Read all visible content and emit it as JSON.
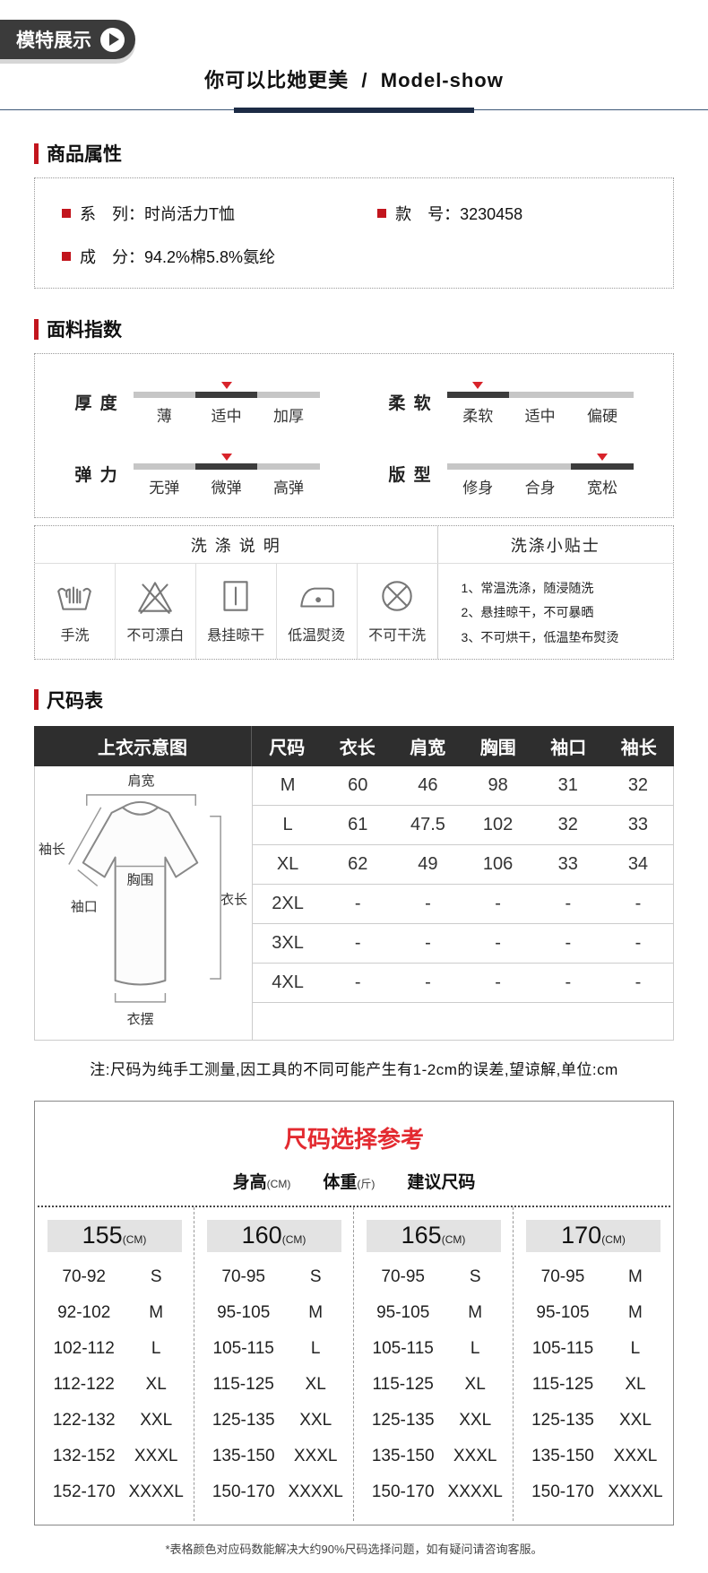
{
  "badge": {
    "label": "模特展示",
    "icon": "play-icon"
  },
  "header": {
    "title_cn": "你可以比她更美",
    "separator": "/",
    "title_en": "Model-show"
  },
  "product_attrs": {
    "section_title": "商品属性",
    "items": [
      {
        "label": "系　列：",
        "value": "时尚活力T恤"
      },
      {
        "label": "款　号：",
        "value": "3230458"
      },
      {
        "label": "成　分：",
        "value": "94.2%棉5.8%氨纶"
      }
    ]
  },
  "fabric_index": {
    "section_title": "面料指数",
    "indexes": [
      {
        "name": "厚 度",
        "levels": [
          "薄",
          "适中",
          "加厚"
        ],
        "active": 1
      },
      {
        "name": "柔 软",
        "levels": [
          "柔软",
          "适中",
          "偏硬"
        ],
        "active": 0
      },
      {
        "name": "弹 力",
        "levels": [
          "无弹",
          "微弹",
          "高弹"
        ],
        "active": 1
      },
      {
        "name": "版 型",
        "levels": [
          "修身",
          "合身",
          "宽松"
        ],
        "active": 2
      }
    ],
    "washing": {
      "instructions_title": "洗 涤 说 明",
      "tips_title": "洗涤小贴士",
      "icons": [
        {
          "name": "hand-wash-icon",
          "label": "手洗"
        },
        {
          "name": "no-bleach-icon",
          "label": "不可漂白"
        },
        {
          "name": "hang-dry-icon",
          "label": "悬挂晾干"
        },
        {
          "name": "low-iron-icon",
          "label": "低温熨烫"
        },
        {
          "name": "no-dryclean-icon",
          "label": "不可干洗"
        }
      ],
      "tips": [
        "1、常温洗涤，随浸随洗",
        "2、悬挂晾干，不可暴晒",
        "3、不可烘干，低温垫布熨烫"
      ]
    }
  },
  "size_chart": {
    "section_title": "尺码表",
    "diagram_title": "上衣示意图",
    "diagram_labels": {
      "shoulder": "肩宽",
      "sleeve_length": "袖长",
      "bust": "胸围",
      "cuff": "袖口",
      "length": "衣长",
      "hem": "衣摆"
    },
    "columns": [
      "尺码",
      "衣长",
      "肩宽",
      "胸围",
      "袖口",
      "袖长"
    ],
    "rows": [
      [
        "M",
        "60",
        "46",
        "98",
        "31",
        "32"
      ],
      [
        "L",
        "61",
        "47.5",
        "102",
        "32",
        "33"
      ],
      [
        "XL",
        "62",
        "49",
        "106",
        "33",
        "34"
      ],
      [
        "2XL",
        "-",
        "-",
        "-",
        "-",
        "-"
      ],
      [
        "3XL",
        "-",
        "-",
        "-",
        "-",
        "-"
      ],
      [
        "4XL",
        "-",
        "-",
        "-",
        "-",
        "-"
      ]
    ],
    "note": "注:尺码为纯手工测量,因工具的不同可能产生有1-2cm的误差,望谅解,单位:cm"
  },
  "size_reference": {
    "title": "尺码选择参考",
    "legend": [
      {
        "main": "身高",
        "sub": "(CM)"
      },
      {
        "main": "体重",
        "sub": "(斤)"
      },
      {
        "main": "建议尺码",
        "sub": ""
      }
    ],
    "groups": [
      {
        "height": "155",
        "unit": "(CM)",
        "rows": [
          [
            "70-92",
            "S"
          ],
          [
            "92-102",
            "M"
          ],
          [
            "102-112",
            "L"
          ],
          [
            "112-122",
            "XL"
          ],
          [
            "122-132",
            "XXL"
          ],
          [
            "132-152",
            "XXXL"
          ],
          [
            "152-170",
            "XXXXL"
          ]
        ]
      },
      {
        "height": "160",
        "unit": "(CM)",
        "rows": [
          [
            "70-95",
            "S"
          ],
          [
            "95-105",
            "M"
          ],
          [
            "105-115",
            "L"
          ],
          [
            "115-125",
            "XL"
          ],
          [
            "125-135",
            "XXL"
          ],
          [
            "135-150",
            "XXXL"
          ],
          [
            "150-170",
            "XXXXL"
          ]
        ]
      },
      {
        "height": "165",
        "unit": "(CM)",
        "rows": [
          [
            "70-95",
            "S"
          ],
          [
            "95-105",
            "M"
          ],
          [
            "105-115",
            "L"
          ],
          [
            "115-125",
            "XL"
          ],
          [
            "125-135",
            "XXL"
          ],
          [
            "135-150",
            "XXXL"
          ],
          [
            "150-170",
            "XXXXL"
          ]
        ]
      },
      {
        "height": "170",
        "unit": "(CM)",
        "rows": [
          [
            "70-95",
            "M"
          ],
          [
            "95-105",
            "M"
          ],
          [
            "105-115",
            "L"
          ],
          [
            "115-125",
            "XL"
          ],
          [
            "125-135",
            "XXL"
          ],
          [
            "135-150",
            "XXXL"
          ],
          [
            "150-170",
            "XXXXL"
          ]
        ]
      }
    ],
    "footnote": "*表格颜色对应码数能解决大约90%尺码选择问题，如有疑问请咨询客服。"
  },
  "colors": {
    "accent_red": "#c2151d",
    "marker_red": "#d8232a",
    "title_red": "#e32a30",
    "navy_thick": "#1c2b45",
    "navy_thin": "#3d5878",
    "badge_dark": "#3b3b3b",
    "table_header_dark": "#2e2e2e",
    "bar_gray": "#c6c6c6",
    "bar_active": "#3c3c3c",
    "pill_gray": "#e3e3e3"
  }
}
